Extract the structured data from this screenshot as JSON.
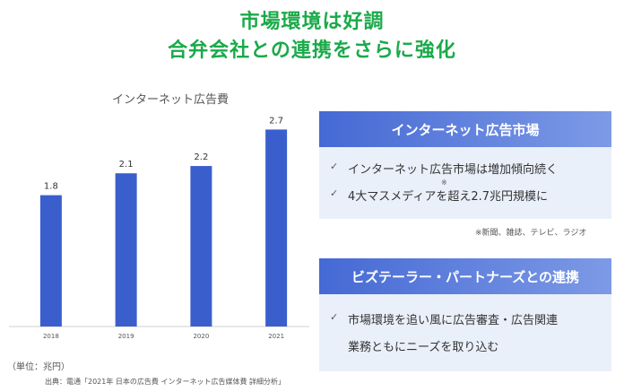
{
  "headline": {
    "line1": "市場環境は好調",
    "line2": "合弁会社との連携をさらに強化"
  },
  "chart_data": {
    "type": "bar",
    "title": "インターネット広告費",
    "categories": [
      "2018",
      "2019",
      "2020",
      "2021"
    ],
    "values": [
      1.8,
      2.1,
      2.2,
      2.7
    ],
    "value_labels": [
      "1.8",
      "2.1",
      "2.2",
      "2.7"
    ],
    "xlabel": "",
    "ylabel": "",
    "ylim": [
      0,
      3.0
    ],
    "grid": false,
    "color": "#3a5fcd"
  },
  "unit_note": "（単位：兆円）",
  "source_note": "出典：電通「2021年 日本の広告費 インターネット広告媒体費 詳細分析」",
  "panel1": {
    "header": "インターネット広告市場",
    "bullet1": "インターネット広告市場は増加傾向続く",
    "bullet2": "4大マスメディアを超え2.7兆円規模に",
    "sup_mark": "※",
    "note": "※新聞、雑誌、テレビ、ラジオ"
  },
  "panel2": {
    "header": "ビズテーラー・パートナーズとの連携",
    "bullet1": "市場環境を追い風に広告審査・広告関連",
    "bullet1_cont": "業務ともにニーズを取り込む"
  },
  "colors": {
    "headline": "#1aaa4a",
    "bar": "#3a5fcd",
    "panel_header_start": "#4569d4",
    "panel_header_end": "#7d9ae6",
    "panel_body": "#eaf0fa"
  },
  "icons": {
    "bullet": "check-icon"
  },
  "check_glyph": "✓"
}
